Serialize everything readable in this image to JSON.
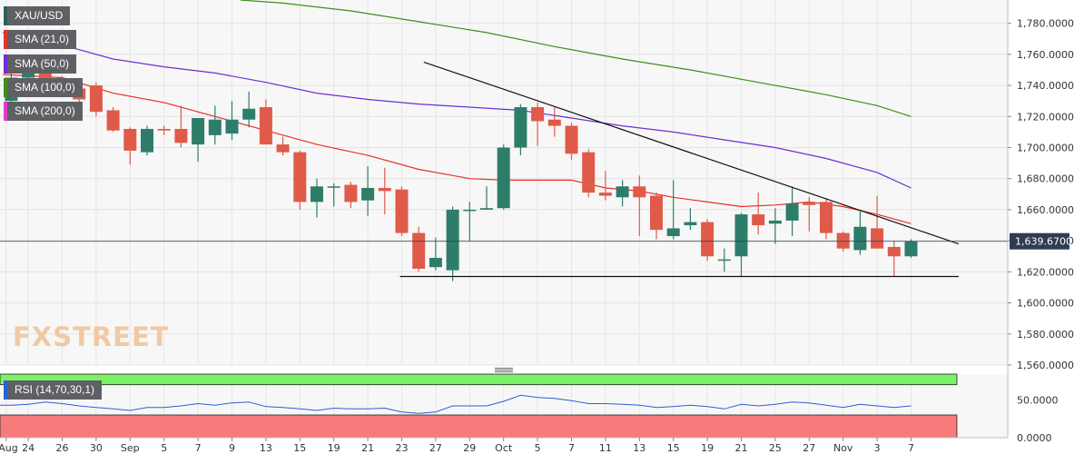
{
  "colors": {
    "up": "#2e7d6b",
    "down": "#e05a4a",
    "sma21": "#e8312a",
    "sma50": "#6b2fd6",
    "sma100": "#3e8f1a",
    "sma200": "#e23ad0",
    "rsi_line": "#2b5fd9",
    "rsi_top": "#7cf069",
    "rsi_bottom": "#f77b7b",
    "price_tag": "#2f3d52"
  },
  "legend": [
    {
      "label": "XAU/USD",
      "color": "#2f5f59"
    },
    {
      "label": "SMA (21,0)",
      "color": "#e8312a"
    },
    {
      "label": "SMA (50,0)",
      "color": "#6b2fd6"
    },
    {
      "label": "SMA (100,0)",
      "color": "#3e8f1a"
    },
    {
      "label": "SMA (200,0)",
      "color": "#e23ad0"
    }
  ],
  "rsi_label": "RSI (14,70,30,1)",
  "watermark": "FXSTREET",
  "chart_data": [
    {
      "type": "candlestick",
      "symbol": "XAU/USD",
      "ylim": [
        1560,
        1795
      ],
      "y_ticks": [
        1560,
        1580,
        1600,
        1620,
        1640,
        1660,
        1680,
        1700,
        1720,
        1740,
        1760,
        1780
      ],
      "y_tick_labels": [
        "1,560.0000",
        "1,580.0000",
        "1,600.0000",
        "1,620.0000",
        "1,640.0000",
        "1,660.0000",
        "1,680.0000",
        "1,700.0000",
        "1,720.0000",
        "1,740.0000",
        "1,760.0000",
        "1,780.0000"
      ],
      "last_price": 1639.67,
      "last_price_label": "1,639.6700",
      "x_tick_labels": [
        "Aug",
        "24",
        "26",
        "30",
        "Sep",
        "5",
        "7",
        "9",
        "13",
        "15",
        "19",
        "21",
        "23",
        "27",
        "29",
        "Oct",
        "5",
        "7",
        "11",
        "13",
        "15",
        "19",
        "21",
        "25",
        "27",
        "Nov",
        "3",
        "7"
      ],
      "x_tick_index": [
        -0.3,
        1,
        3,
        5,
        7,
        9,
        11,
        13,
        15,
        17,
        19,
        21,
        23,
        25,
        27,
        29,
        31,
        33,
        35,
        37,
        39,
        41,
        43,
        45,
        47,
        49,
        51,
        53
      ],
      "candles": [
        {
          "o": 1730,
          "h": 1752,
          "l": 1728,
          "c": 1745
        },
        {
          "o": 1745,
          "h": 1757,
          "l": 1742,
          "c": 1750
        },
        {
          "o": 1750,
          "h": 1755,
          "l": 1735,
          "c": 1740
        },
        {
          "o": 1740,
          "h": 1746,
          "l": 1733,
          "c": 1738
        },
        {
          "o": 1738,
          "h": 1743,
          "l": 1728,
          "c": 1731
        },
        {
          "o": 1740,
          "h": 1742,
          "l": 1720,
          "c": 1723
        },
        {
          "o": 1724,
          "h": 1726,
          "l": 1710,
          "c": 1711
        },
        {
          "o": 1712,
          "h": 1713,
          "l": 1689,
          "c": 1698
        },
        {
          "o": 1697,
          "h": 1714,
          "l": 1695,
          "c": 1712
        },
        {
          "o": 1712,
          "h": 1714,
          "l": 1708,
          "c": 1711
        },
        {
          "o": 1712,
          "h": 1727,
          "l": 1700,
          "c": 1703
        },
        {
          "o": 1702,
          "h": 1719,
          "l": 1691,
          "c": 1719
        },
        {
          "o": 1708,
          "h": 1727,
          "l": 1702,
          "c": 1718
        },
        {
          "o": 1709,
          "h": 1730,
          "l": 1705,
          "c": 1718
        },
        {
          "o": 1718,
          "h": 1736,
          "l": 1713,
          "c": 1725
        },
        {
          "o": 1726,
          "h": 1731,
          "l": 1702,
          "c": 1702
        },
        {
          "o": 1702,
          "h": 1707,
          "l": 1695,
          "c": 1697
        },
        {
          "o": 1697,
          "h": 1698,
          "l": 1660,
          "c": 1665
        },
        {
          "o": 1665,
          "h": 1680,
          "l": 1655,
          "c": 1675
        },
        {
          "o": 1675,
          "h": 1677,
          "l": 1662,
          "c": 1675
        },
        {
          "o": 1676,
          "h": 1678,
          "l": 1661,
          "c": 1665
        },
        {
          "o": 1666,
          "h": 1688,
          "l": 1656,
          "c": 1674
        },
        {
          "o": 1674,
          "h": 1687,
          "l": 1657,
          "c": 1672
        },
        {
          "o": 1673,
          "h": 1675,
          "l": 1643,
          "c": 1645
        },
        {
          "o": 1645,
          "h": 1649,
          "l": 1620,
          "c": 1622
        },
        {
          "o": 1623,
          "h": 1642,
          "l": 1621,
          "c": 1629
        },
        {
          "o": 1621,
          "h": 1662,
          "l": 1614,
          "c": 1660
        },
        {
          "o": 1660,
          "h": 1665,
          "l": 1640,
          "c": 1660
        },
        {
          "o": 1660,
          "h": 1675,
          "l": 1660,
          "c": 1661
        },
        {
          "o": 1661,
          "h": 1702,
          "l": 1660,
          "c": 1700
        },
        {
          "o": 1700,
          "h": 1728,
          "l": 1695,
          "c": 1726
        },
        {
          "o": 1726,
          "h": 1729,
          "l": 1701,
          "c": 1717
        },
        {
          "o": 1718,
          "h": 1726,
          "l": 1707,
          "c": 1714
        },
        {
          "o": 1714,
          "h": 1716,
          "l": 1692,
          "c": 1696
        },
        {
          "o": 1697,
          "h": 1699,
          "l": 1668,
          "c": 1671
        },
        {
          "o": 1671,
          "h": 1685,
          "l": 1666,
          "c": 1669
        },
        {
          "o": 1668,
          "h": 1679,
          "l": 1662,
          "c": 1675
        },
        {
          "o": 1675,
          "h": 1682,
          "l": 1643,
          "c": 1668
        },
        {
          "o": 1669,
          "h": 1671,
          "l": 1641,
          "c": 1647
        },
        {
          "o": 1643,
          "h": 1679,
          "l": 1641,
          "c": 1648
        },
        {
          "o": 1650,
          "h": 1661,
          "l": 1647,
          "c": 1652
        },
        {
          "o": 1652,
          "h": 1654,
          "l": 1627,
          "c": 1630
        },
        {
          "o": 1628,
          "h": 1635,
          "l": 1620,
          "c": 1628
        },
        {
          "o": 1630,
          "h": 1658,
          "l": 1617,
          "c": 1657
        },
        {
          "o": 1657,
          "h": 1671,
          "l": 1644,
          "c": 1650
        },
        {
          "o": 1651,
          "h": 1661,
          "l": 1638,
          "c": 1653
        },
        {
          "o": 1653,
          "h": 1675,
          "l": 1643,
          "c": 1664
        },
        {
          "o": 1665,
          "h": 1668,
          "l": 1646,
          "c": 1663
        },
        {
          "o": 1665,
          "h": 1667,
          "l": 1641,
          "c": 1645
        },
        {
          "o": 1645,
          "h": 1646,
          "l": 1633,
          "c": 1635
        },
        {
          "o": 1634,
          "h": 1659,
          "l": 1631,
          "c": 1649
        },
        {
          "o": 1648,
          "h": 1669,
          "l": 1636,
          "c": 1635
        },
        {
          "o": 1636,
          "h": 1640,
          "l": 1617,
          "c": 1630
        },
        {
          "o": 1630,
          "h": 1641,
          "l": 1629,
          "c": 1639.67
        }
      ],
      "sma21": [
        [
          -0.5,
          1747
        ],
        [
          3,
          1745
        ],
        [
          6,
          1735
        ],
        [
          9,
          1729
        ],
        [
          12,
          1720
        ],
        [
          15,
          1711
        ],
        [
          18,
          1702
        ],
        [
          21,
          1695
        ],
        [
          24,
          1686
        ],
        [
          27,
          1680
        ],
        [
          29,
          1679
        ],
        [
          31,
          1679
        ],
        [
          33,
          1679
        ],
        [
          35,
          1674
        ],
        [
          37,
          1672
        ],
        [
          39,
          1668
        ],
        [
          41,
          1665
        ],
        [
          43,
          1662
        ],
        [
          45,
          1663
        ],
        [
          47,
          1665
        ],
        [
          49,
          1662
        ],
        [
          51,
          1657
        ],
        [
          53,
          1651
        ]
      ],
      "sma50": [
        [
          -0.5,
          1774
        ],
        [
          3,
          1766
        ],
        [
          6,
          1757
        ],
        [
          9,
          1752
        ],
        [
          12,
          1748
        ],
        [
          15,
          1742
        ],
        [
          18,
          1735
        ],
        [
          21,
          1731
        ],
        [
          24,
          1728
        ],
        [
          27,
          1726
        ],
        [
          30,
          1724
        ],
        [
          33,
          1719
        ],
        [
          36,
          1714
        ],
        [
          39,
          1710
        ],
        [
          42,
          1705
        ],
        [
          45,
          1700
        ],
        [
          48,
          1693
        ],
        [
          51,
          1684
        ],
        [
          53,
          1674
        ]
      ],
      "sma100": [
        [
          13.5,
          1795
        ],
        [
          16,
          1793
        ],
        [
          20,
          1788
        ],
        [
          24,
          1781
        ],
        [
          28,
          1774
        ],
        [
          32,
          1765
        ],
        [
          36,
          1757
        ],
        [
          40,
          1750
        ],
        [
          44,
          1742
        ],
        [
          48,
          1734
        ],
        [
          51,
          1727
        ],
        [
          53,
          1720
        ]
      ],
      "trendlines": [
        {
          "from": [
            24.3,
            1755
          ],
          "to": [
            55.8,
            1638
          ]
        },
        {
          "from": [
            22.9,
            1617
          ],
          "to": [
            55.8,
            1617
          ]
        }
      ]
    },
    {
      "type": "line",
      "name": "RSI (14,70,30,1)",
      "ylim": [
        0,
        84
      ],
      "y_tick_labels": [
        "0.0000",
        "50.0000"
      ],
      "bands": {
        "overbought": 70,
        "oversold": 30
      },
      "values": [
        43,
        44,
        47,
        45,
        42,
        40,
        38,
        36,
        40,
        40,
        42,
        45,
        43,
        46,
        47,
        41,
        40,
        38,
        36,
        39,
        38,
        38,
        39,
        34,
        32,
        34,
        42,
        42,
        42,
        48,
        56,
        53,
        52,
        49,
        45,
        45,
        44,
        43,
        40,
        41,
        43,
        41,
        38,
        44,
        42,
        44,
        47,
        46,
        43,
        40,
        44,
        42,
        40,
        42
      ]
    }
  ]
}
